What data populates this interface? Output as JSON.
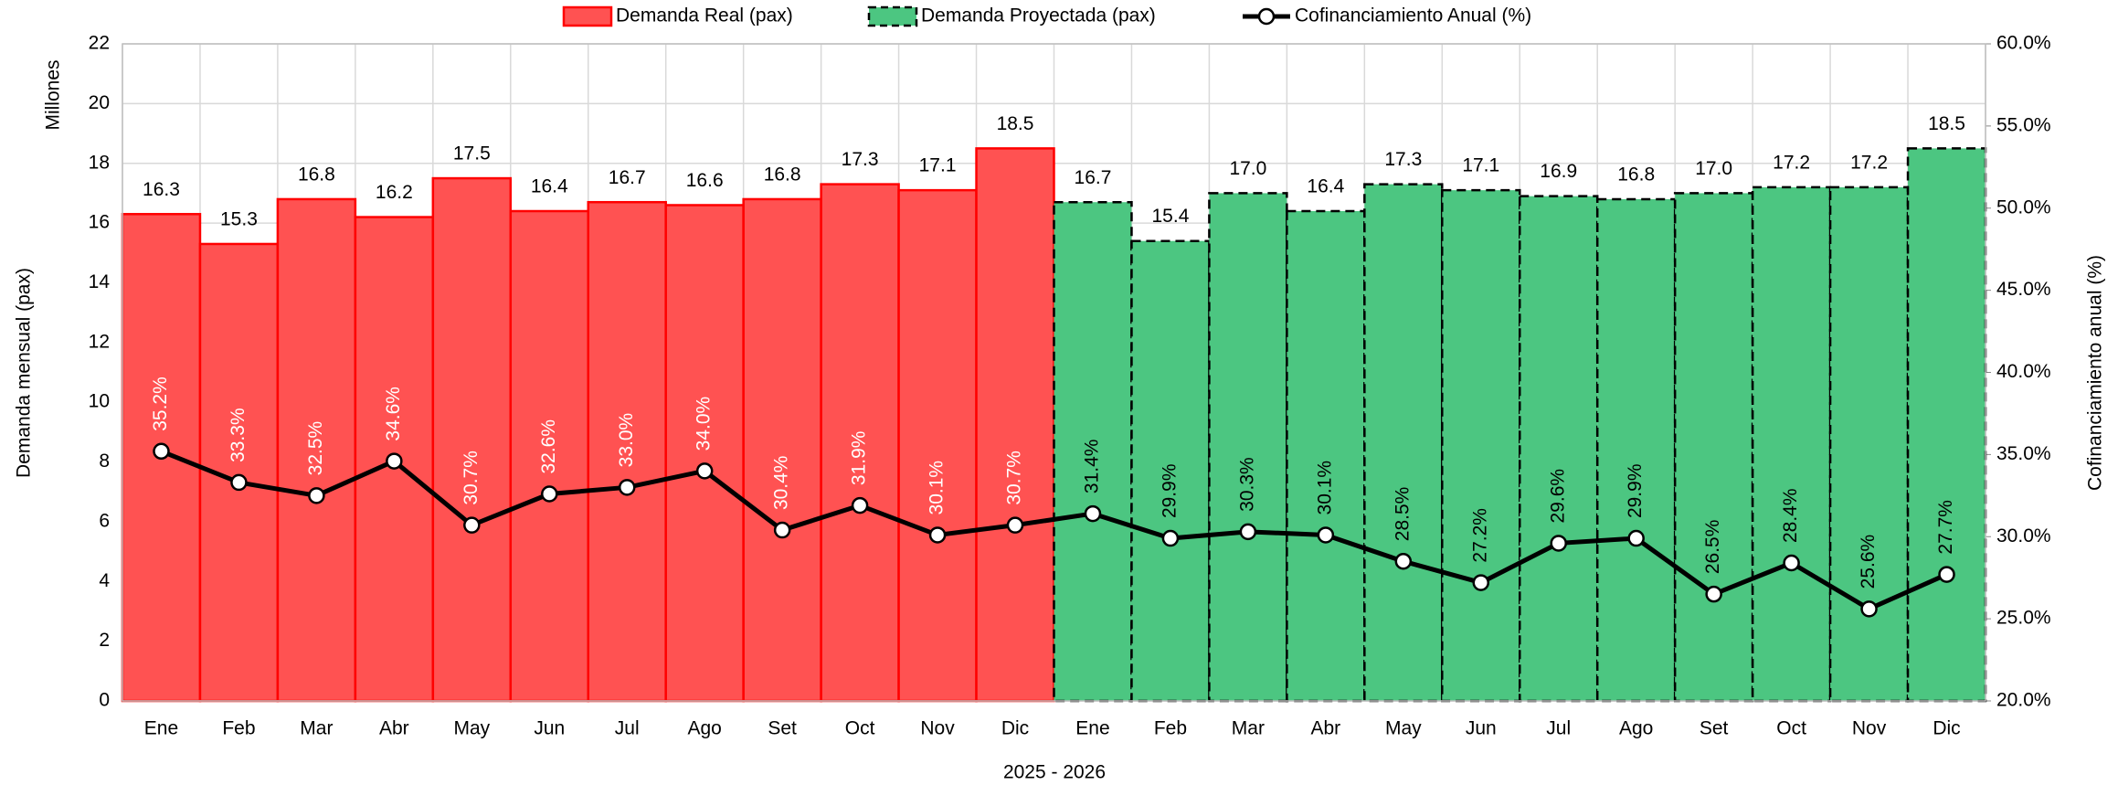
{
  "chart_data": {
    "type": "bar",
    "categories": [
      "Ene",
      "Feb",
      "Mar",
      "Abr",
      "May",
      "Jun",
      "Jul",
      "Ago",
      "Set",
      "Oct",
      "Nov",
      "Dic",
      "Ene",
      "Feb",
      "Mar",
      "Abr",
      "May",
      "Jun",
      "Jul",
      "Ago",
      "Set",
      "Oct",
      "Nov",
      "Dic"
    ],
    "x_label": "2025 - 2026",
    "y_label": "Demanda mensual (pax)",
    "y_unit": "Millones",
    "y2_label": "Cofinanciamiento anual (%)",
    "ylim": [
      0,
      22
    ],
    "yticks": [
      0,
      2,
      4,
      6,
      8,
      10,
      12,
      14,
      16,
      18,
      20,
      22
    ],
    "y2lim": [
      20,
      60
    ],
    "y2ticks": [
      {
        "value": 20,
        "label": "20.0%"
      },
      {
        "value": 25,
        "label": "25.0%"
      },
      {
        "value": 30,
        "label": "30.0%"
      },
      {
        "value": 35,
        "label": "35.0%"
      },
      {
        "value": 40,
        "label": "40.0%"
      },
      {
        "value": 45,
        "label": "45.0%"
      },
      {
        "value": 50,
        "label": "50.0%"
      },
      {
        "value": 55,
        "label": "55.0%"
      },
      {
        "value": 60,
        "label": "60.0%"
      }
    ],
    "grid": true,
    "legend": "top",
    "series": [
      {
        "name": "Demanda Real (pax)",
        "type": "bar",
        "color": "#ff5252",
        "edge_color": "#ff0000",
        "linestyle": "solid",
        "values": [
          16.3,
          15.3,
          16.8,
          16.2,
          17.5,
          16.4,
          16.7,
          16.6,
          16.8,
          17.3,
          17.1,
          18.5,
          null,
          null,
          null,
          null,
          null,
          null,
          null,
          null,
          null,
          null,
          null,
          null
        ],
        "value_labels": [
          "16.3",
          "15.3",
          "16.8",
          "16.2",
          "17.5",
          "16.4",
          "16.7",
          "16.6",
          "16.8",
          "17.3",
          "17.1",
          "18.5",
          null,
          null,
          null,
          null,
          null,
          null,
          null,
          null,
          null,
          null,
          null,
          null
        ]
      },
      {
        "name": "Demanda Proyectada (pax)",
        "type": "bar",
        "color": "#4cc681",
        "edge_color": "#000000",
        "linestyle": "dashed",
        "values": [
          null,
          null,
          null,
          null,
          null,
          null,
          null,
          null,
          null,
          null,
          null,
          null,
          16.7,
          15.4,
          17.0,
          16.4,
          17.3,
          17.1,
          16.9,
          16.8,
          17.0,
          17.2,
          17.2,
          18.5
        ],
        "value_labels": [
          null,
          null,
          null,
          null,
          null,
          null,
          null,
          null,
          null,
          null,
          null,
          null,
          "16.7",
          "15.4",
          "17.0",
          "16.4",
          "17.3",
          "17.1",
          "16.9",
          "16.8",
          "17.0",
          "17.2",
          "17.2",
          "18.5"
        ]
      },
      {
        "name": "Cofinanciamiento Anual (%)",
        "type": "line",
        "axis": "y2",
        "color": "#000000",
        "values": [
          35.2,
          33.3,
          32.5,
          34.6,
          30.7,
          32.6,
          33.0,
          34.0,
          30.4,
          31.9,
          30.1,
          30.7,
          31.4,
          29.9,
          30.3,
          30.1,
          28.5,
          27.2,
          29.6,
          29.9,
          26.5,
          28.4,
          25.6,
          27.7
        ],
        "value_labels": [
          "35.2%",
          "33.3%",
          "32.5%",
          "34.6%",
          "30.7%",
          "32.6%",
          "33.0%",
          "34.0%",
          "30.4%",
          "31.9%",
          "30.1%",
          "30.7%",
          "31.4%",
          "29.9%",
          "30.3%",
          "30.1%",
          "28.5%",
          "27.2%",
          "29.6%",
          "29.9%",
          "26.5%",
          "28.4%",
          "25.6%",
          "27.7%"
        ]
      }
    ]
  }
}
